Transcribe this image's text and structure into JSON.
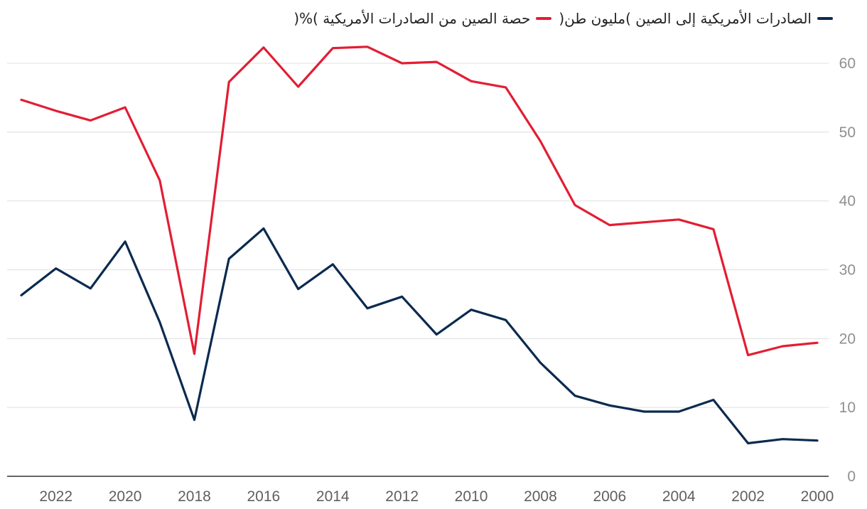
{
  "chart_data": {
    "type": "line",
    "title": "",
    "xlabel": "",
    "ylabel": "",
    "x_direction": "reversed",
    "x": [
      2023,
      2022,
      2021,
      2020,
      2019,
      2018,
      2017,
      2016,
      2015,
      2014,
      2013,
      2012,
      2011,
      2010,
      2009,
      2008,
      2007,
      2006,
      2005,
      2004,
      2003,
      2002,
      2001,
      2000
    ],
    "xticks": [
      2022,
      2020,
      2018,
      2016,
      2014,
      2012,
      2010,
      2008,
      2006,
      2004,
      2002,
      2000
    ],
    "xlim": [
      2023,
      2000
    ],
    "ylim": [
      0,
      63
    ],
    "yticks": [
      0,
      10,
      20,
      30,
      40,
      50,
      60
    ],
    "series": [
      {
        "name": "الصادرات الأمريكية إلى الصين )مليون طن(",
        "color": "#0b2a4f",
        "values": [
          26.3,
          30.2,
          27.3,
          34.1,
          22.4,
          8.2,
          31.6,
          36.0,
          27.2,
          30.8,
          24.4,
          26.1,
          20.6,
          24.2,
          22.7,
          16.5,
          11.7,
          10.3,
          9.4,
          9.4,
          11.1,
          4.8,
          5.4,
          5.2
        ]
      },
      {
        "name": "حصة الصين من الصادرات الأمريكية )%(",
        "color": "#e31d33",
        "values": [
          54.7,
          53.1,
          51.7,
          53.6,
          43.0,
          17.8,
          57.3,
          62.3,
          56.6,
          62.2,
          62.4,
          60.0,
          60.2,
          57.4,
          56.5,
          48.7,
          39.4,
          36.5,
          36.9,
          37.3,
          35.9,
          17.6,
          18.9,
          19.4
        ]
      }
    ]
  }
}
